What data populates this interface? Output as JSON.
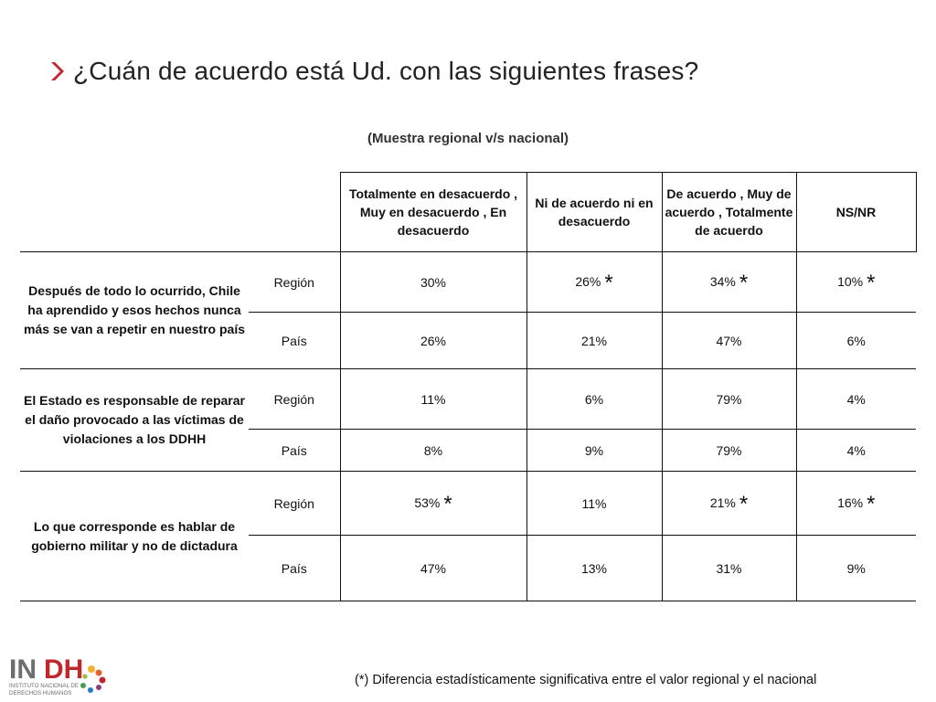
{
  "title": "¿Cuán de acuerdo está Ud. con las siguientes frases?",
  "subtitle": "(Muestra regional v/s nacional)",
  "columns": [
    "Totalmente en desacuerdo , Muy en desacuerdo , En desacuerdo",
    "Ni de acuerdo ni en desacuerdo",
    "De acuerdo , Muy de acuerdo , Totalmente de acuerdo",
    "NS/NR"
  ],
  "rows": [
    {
      "question": "Después de todo lo ocurrido, Chile ha aprendido y esos hechos nunca más se van a repetir en nuestro país",
      "region": {
        "label": "Región",
        "values": [
          "30%",
          "26%",
          "34%",
          "10%"
        ],
        "significant": [
          false,
          true,
          true,
          true
        ]
      },
      "pais": {
        "label": "País",
        "values": [
          "26%",
          "21%",
          "47%",
          "6%"
        ]
      }
    },
    {
      "question": "El Estado es responsable de reparar el daño provocado a las víctimas de violaciones a los DDHH",
      "region": {
        "label": "Región",
        "values": [
          "11%",
          "6%",
          "79%",
          "4%"
        ],
        "significant": [
          false,
          false,
          false,
          false
        ]
      },
      "pais": {
        "label": "País",
        "values": [
          "8%",
          "9%",
          "79%",
          "4%"
        ]
      }
    },
    {
      "question": "Lo que corresponde es hablar de gobierno militar y no de dictadura",
      "region": {
        "label": "Región",
        "values": [
          "53%",
          "11%",
          "21%",
          "16%"
        ],
        "significant": [
          true,
          false,
          true,
          true
        ]
      },
      "pais": {
        "label": "País",
        "values": [
          "47%",
          "13%",
          "31%",
          "9%"
        ]
      }
    }
  ],
  "significance_marker": "*",
  "footnote": "(*) Diferencia estadísticamente significativa entre el valor regional y el nacional",
  "logo": {
    "brand": "INDH",
    "line1": "INSTITUTO NACIONAL DE",
    "line2": "DERECHOS HUMANOS"
  },
  "colors": {
    "accent": "#c0282d",
    "text": "#111111"
  }
}
